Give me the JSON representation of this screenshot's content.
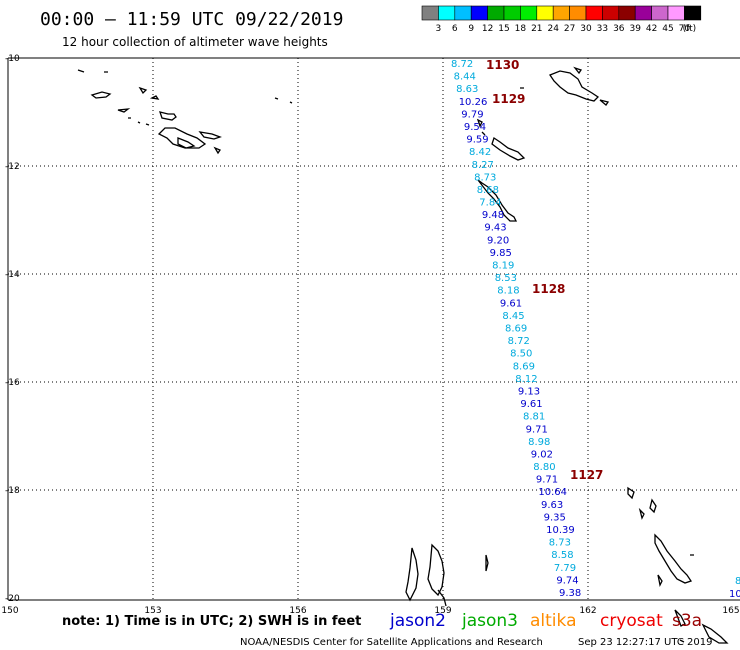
{
  "header": {
    "title": "00:00 — 11:59 UTC 09/22/2019",
    "subtitle": "12 hour collection of altimeter wave heights"
  },
  "legend": {
    "colors": [
      "#808080",
      "#00ffff",
      "#00bfff",
      "#0000ff",
      "#00aa00",
      "#00cc00",
      "#00ee00",
      "#ffff00",
      "#ffa500",
      "#ff8c00",
      "#ff0000",
      "#cc0000",
      "#8b0000",
      "#990099",
      "#cc66cc",
      "#ff99ff",
      "#000000"
    ],
    "labels": [
      "3",
      "6",
      "9",
      "12",
      "15",
      "18",
      "21",
      "24",
      "27",
      "30",
      "33",
      "36",
      "39",
      "42",
      "45",
      "70",
      "(ft)"
    ]
  },
  "axes": {
    "lat_labels": [
      "-10",
      "-12",
      "-14",
      "-16",
      "-18",
      "-20"
    ],
    "lon_labels": [
      "150",
      "153",
      "156",
      "159",
      "162",
      "165"
    ]
  },
  "footer": {
    "note": "note: 1) Time is in UTC; 2) SWH is in feet",
    "satellites": [
      {
        "name": "jason2",
        "color": "#0000cc"
      },
      {
        "name": "jason3",
        "color": "#00aa00"
      },
      {
        "name": "altika",
        "color": "#ff8c00"
      },
      {
        "name": "cryosat",
        "color": "#ee0000"
      },
      {
        "name": "s3a",
        "color": "#990000"
      }
    ],
    "credit": "NOAA/NESDIS Center for Satellite Applications and Research",
    "timestamp": "Sep 23 12:27:17 UTC 2019"
  },
  "track": {
    "time_labels": [
      {
        "text": "1130",
        "color": "#8b0000"
      },
      {
        "text": "1129",
        "color": "#8b0000"
      },
      {
        "text": "1128",
        "color": "#8b0000"
      },
      {
        "text": "1127",
        "color": "#8b0000"
      }
    ],
    "values": [
      {
        "text": "8.72",
        "color": "#00aadd"
      },
      {
        "text": "8.44",
        "color": "#00aadd"
      },
      {
        "text": "8.63",
        "color": "#00aadd"
      },
      {
        "text": "10.26",
        "color": "#0000cc"
      },
      {
        "text": "9.79",
        "color": "#0000cc"
      },
      {
        "text": "9.54",
        "color": "#0000cc"
      },
      {
        "text": "9.59",
        "color": "#0000cc"
      },
      {
        "text": "8.42",
        "color": "#00aadd"
      },
      {
        "text": "8.27",
        "color": "#00aadd"
      },
      {
        "text": "8.73",
        "color": "#00aadd"
      },
      {
        "text": "8.68",
        "color": "#00aadd"
      },
      {
        "text": "7.84",
        "color": "#00aadd"
      },
      {
        "text": "9.48",
        "color": "#0000cc"
      },
      {
        "text": "9.43",
        "color": "#0000cc"
      },
      {
        "text": "9.20",
        "color": "#0000cc"
      },
      {
        "text": "9.85",
        "color": "#0000cc"
      },
      {
        "text": "8.19",
        "color": "#00aadd"
      },
      {
        "text": "8.53",
        "color": "#00aadd"
      },
      {
        "text": "8.18",
        "color": "#00aadd"
      },
      {
        "text": "9.61",
        "color": "#0000cc"
      },
      {
        "text": "8.45",
        "color": "#00aadd"
      },
      {
        "text": "8.69",
        "color": "#00aadd"
      },
      {
        "text": "8.72",
        "color": "#00aadd"
      },
      {
        "text": "8.50",
        "color": "#00aadd"
      },
      {
        "text": "8.69",
        "color": "#00aadd"
      },
      {
        "text": "8.12",
        "color": "#00aadd"
      },
      {
        "text": "9.13",
        "color": "#0000cc"
      },
      {
        "text": "9.61",
        "color": "#0000cc"
      },
      {
        "text": "8.81",
        "color": "#00aadd"
      },
      {
        "text": "9.71",
        "color": "#0000cc"
      },
      {
        "text": "8.98",
        "color": "#00aadd"
      },
      {
        "text": "9.02",
        "color": "#0000cc"
      },
      {
        "text": "8.80",
        "color": "#00aadd"
      },
      {
        "text": "9.71",
        "color": "#0000cc"
      },
      {
        "text": "10.64",
        "color": "#0000cc"
      },
      {
        "text": "9.63",
        "color": "#0000cc"
      },
      {
        "text": "9.35",
        "color": "#0000cc"
      },
      {
        "text": "10.39",
        "color": "#0000cc"
      },
      {
        "text": "8.73",
        "color": "#00aadd"
      },
      {
        "text": "8.58",
        "color": "#00aadd"
      },
      {
        "text": "7.79",
        "color": "#00aadd"
      },
      {
        "text": "9.74",
        "color": "#0000cc"
      },
      {
        "text": "9.38",
        "color": "#0000cc"
      }
    ],
    "edge_values": [
      {
        "text": "8",
        "color": "#00aadd"
      },
      {
        "text": "10",
        "color": "#0000cc"
      }
    ]
  }
}
